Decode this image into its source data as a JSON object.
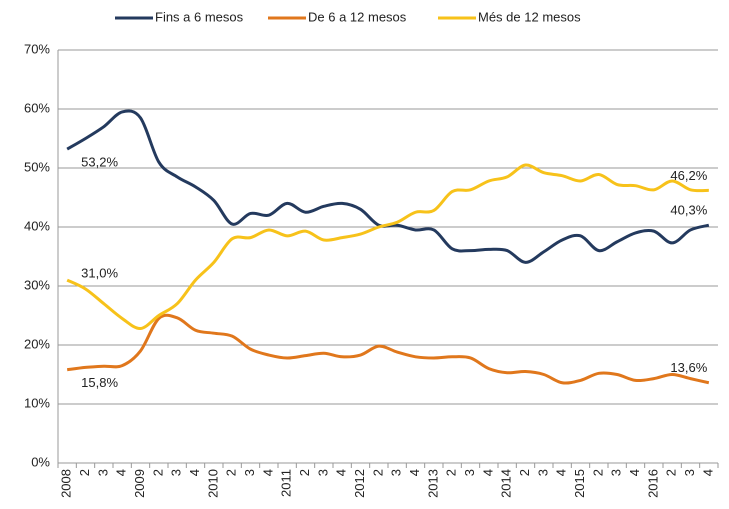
{
  "chart_data": {
    "type": "line",
    "categories": [
      "2008",
      "2",
      "3",
      "4",
      "2009",
      "2",
      "3",
      "4",
      "2010",
      "2",
      "3",
      "4",
      "2011",
      "2",
      "3",
      "4",
      "2012",
      "2",
      "3",
      "4",
      "2013",
      "2",
      "3",
      "4",
      "2014",
      "2",
      "3",
      "4",
      "2015",
      "2",
      "3",
      "4",
      "2016",
      "2",
      "3",
      "4"
    ],
    "series": [
      {
        "name": "Fins a 6 mesos",
        "color": "#243a5e",
        "values": [
          53.2,
          55,
          57,
          59.5,
          58.5,
          51,
          48.5,
          46.8,
          44.5,
          40.5,
          42.3,
          42,
          44,
          42.5,
          43.5,
          44,
          43,
          40.3,
          40.3,
          39.5,
          39.5,
          36.3,
          36,
          36.2,
          36,
          34,
          35.8,
          37.8,
          38.5,
          36,
          37.5,
          39,
          39.3,
          37.3,
          39.5,
          40.3
        ],
        "value_labels": [
          "53,2%",
          null,
          null,
          null,
          null,
          null,
          null,
          null,
          null,
          null,
          null,
          null,
          null,
          null,
          null,
          null,
          null,
          null,
          null,
          null,
          null,
          null,
          null,
          null,
          null,
          null,
          null,
          null,
          null,
          null,
          null,
          null,
          null,
          null,
          null,
          "40,3%"
        ]
      },
      {
        "name": "De 6 a 12 mesos",
        "color": "#e0771c",
        "values": [
          15.8,
          16.2,
          16.4,
          16.5,
          19,
          24.5,
          24.6,
          22.5,
          22,
          21.5,
          19.3,
          18.3,
          17.8,
          18.2,
          18.6,
          18,
          18.3,
          19.8,
          18.8,
          18,
          17.8,
          18,
          17.8,
          16,
          15.3,
          15.5,
          15,
          13.6,
          14,
          15.2,
          15,
          14,
          14.3,
          15,
          14.3,
          13.6
        ],
        "value_labels": [
          "15,8%",
          null,
          null,
          null,
          null,
          null,
          null,
          null,
          null,
          null,
          null,
          null,
          null,
          null,
          null,
          null,
          null,
          null,
          null,
          null,
          null,
          null,
          null,
          null,
          null,
          null,
          null,
          null,
          null,
          null,
          null,
          null,
          null,
          null,
          null,
          "13,6%"
        ]
      },
      {
        "name": "Més de 12 mesos",
        "color": "#f7c21a",
        "values": [
          31.0,
          29.5,
          27,
          24.5,
          22.8,
          25,
          27,
          31,
          34,
          38,
          38.2,
          39.5,
          38.5,
          39.3,
          37.8,
          38.2,
          38.8,
          40,
          40.8,
          42.5,
          42.8,
          46,
          46.3,
          47.8,
          48.5,
          50.5,
          49.2,
          48.7,
          47.8,
          48.9,
          47.2,
          47,
          46.3,
          47.8,
          46.3,
          46.2
        ],
        "value_labels": [
          "31,0%",
          null,
          null,
          null,
          null,
          null,
          null,
          null,
          null,
          null,
          null,
          null,
          null,
          null,
          null,
          null,
          null,
          null,
          null,
          null,
          null,
          null,
          null,
          null,
          null,
          null,
          null,
          null,
          null,
          null,
          null,
          null,
          null,
          null,
          null,
          "46,2%"
        ]
      }
    ],
    "ylim": [
      0,
      70
    ],
    "yticks": [
      {
        "value": 0,
        "label": "0%"
      },
      {
        "value": 10,
        "label": "10%"
      },
      {
        "value": 20,
        "label": "20%"
      },
      {
        "value": 30,
        "label": "30%"
      },
      {
        "value": 40,
        "label": "40%"
      },
      {
        "value": 50,
        "label": "50%"
      },
      {
        "value": 60,
        "label": "60%"
      },
      {
        "value": 70,
        "label": "70%"
      }
    ],
    "grid": true,
    "legend": "top"
  }
}
